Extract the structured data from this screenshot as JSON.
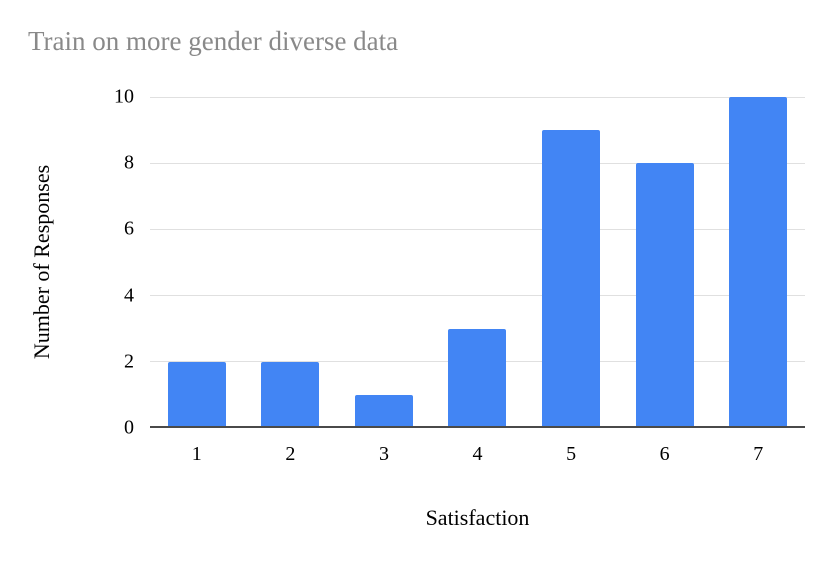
{
  "chart_data": {
    "type": "bar",
    "title": "Train on more gender diverse data",
    "categories": [
      "1",
      "2",
      "3",
      "4",
      "5",
      "6",
      "7"
    ],
    "values": [
      2,
      2,
      1,
      3,
      9,
      8,
      10
    ],
    "xlabel": "Satisfaction",
    "ylabel": "Number of Responses",
    "ylim": [
      0,
      10
    ],
    "yticks": [
      0,
      2,
      4,
      6,
      8,
      10
    ],
    "grid": true,
    "legend_position": "none",
    "bar_color": "#4285f4",
    "gridline_color": "#e0e0e0",
    "axis_line_color": "#4a4a4a",
    "title_color": "#898989",
    "tick_label_color": "#000000"
  }
}
